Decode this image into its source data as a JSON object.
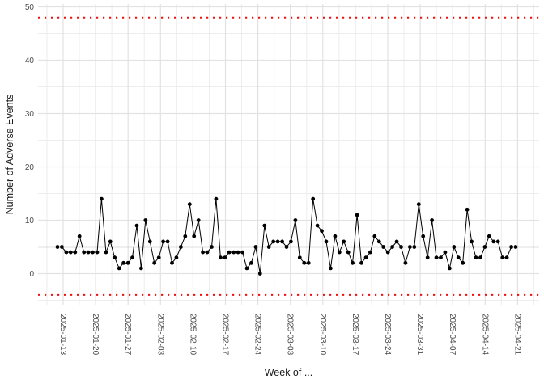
{
  "figure": {
    "background": "#FFFFFF",
    "kind": "ggplot-style control chart of adverse events per day"
  },
  "y_axis": {
    "title": "Number of Adverse Events",
    "tick_labels": [
      "0",
      "10",
      "20",
      "30",
      "40",
      "50"
    ],
    "tick_values": [
      0,
      10,
      20,
      30,
      40,
      50
    ]
  },
  "x_axis": {
    "title": "Week of ...",
    "tick_labels": [
      "2025-01-13",
      "2025-01-20",
      "2025-01-27",
      "2025-02-03",
      "2025-02-10",
      "2025-02-17",
      "2025-02-24",
      "2025-03-03",
      "2025-03-10",
      "2025-03-17",
      "2025-03-24",
      "2025-03-31",
      "2025-04-07",
      "2025-04-14",
      "2025-04-21"
    ]
  },
  "chart_data": {
    "type": "line",
    "subtype": "control-chart",
    "title": "",
    "xlabel": "Week of ...",
    "ylabel": "Number of Adverse Events",
    "x_start": "2025-01-13",
    "x_step": "1 day",
    "x_tick_labels": [
      "2025-01-13",
      "2025-01-20",
      "2025-01-27",
      "2025-02-03",
      "2025-02-10",
      "2025-02-17",
      "2025-02-24",
      "2025-03-03",
      "2025-03-10",
      "2025-03-17",
      "2025-03-24",
      "2025-03-31",
      "2025-04-07",
      "2025-04-14",
      "2025-04-21"
    ],
    "values": [
      5,
      5,
      4,
      4,
      4,
      7,
      4,
      4,
      4,
      4,
      14,
      4,
      6,
      3,
      1,
      2,
      2,
      3,
      9,
      1,
      10,
      6,
      2,
      3,
      6,
      6,
      2,
      3,
      5,
      7,
      13,
      7,
      10,
      4,
      4,
      5,
      14,
      3,
      3,
      4,
      4,
      4,
      4,
      1,
      2,
      5,
      0,
      9,
      5,
      6,
      6,
      6,
      5,
      6,
      10,
      3,
      2,
      2,
      14,
      9,
      8,
      6,
      1,
      7,
      4,
      6,
      4,
      2,
      11,
      2,
      3,
      4,
      7,
      6,
      5,
      4,
      5,
      6,
      5,
      2,
      5,
      5,
      13,
      7,
      3,
      10,
      3,
      3,
      4,
      1,
      5,
      3,
      2,
      12,
      6,
      3,
      3,
      5,
      7,
      6,
      6,
      3,
      3,
      5,
      5
    ],
    "center_line": 5,
    "upper_limit": 48,
    "lower_limit": -4,
    "ylim": [
      -6,
      51
    ],
    "grid": "on",
    "legend": "none",
    "colors": {
      "series": "#000000",
      "center_line": "#808080",
      "limit_lines": "#EE1111",
      "grid_major": "#E2E2E2",
      "grid_minor": "#EDEDED",
      "axis_text": "#4D4D4D",
      "axis_title": "#1A1A1A"
    }
  }
}
